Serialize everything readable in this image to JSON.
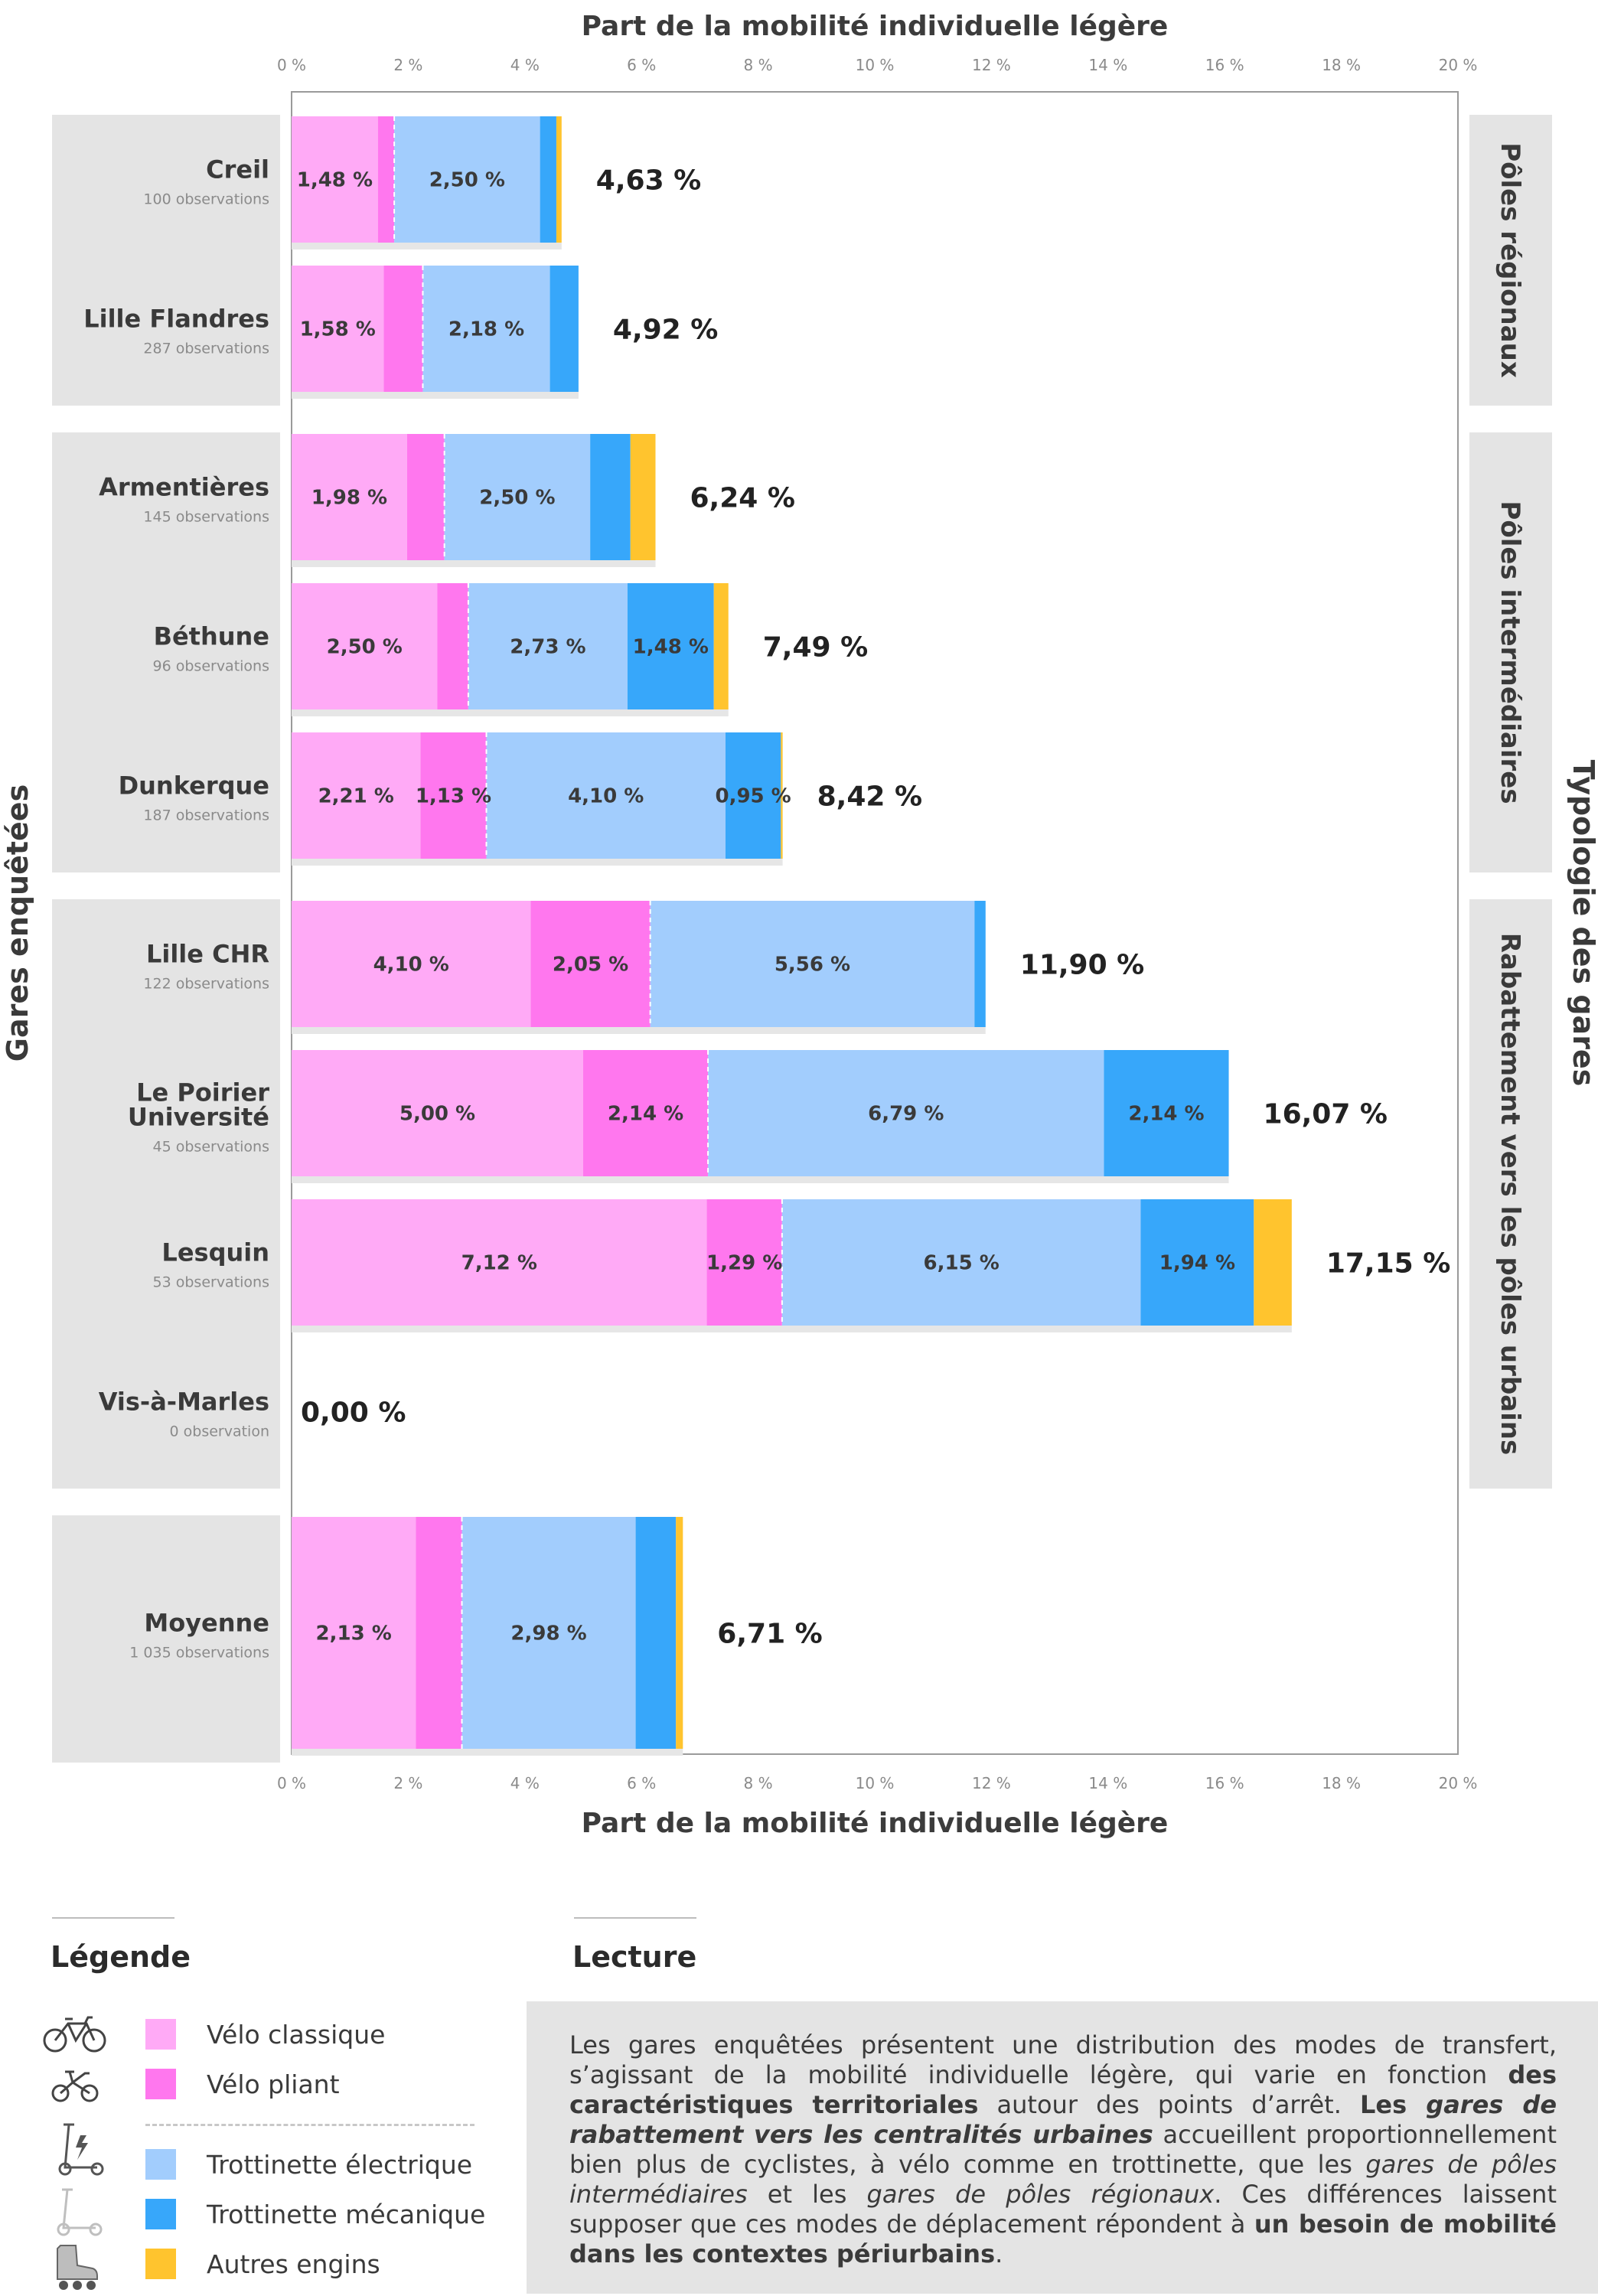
{
  "chart_data": {
    "type": "bar",
    "orientation": "horizontal",
    "stacked": true,
    "title": "Part de la mobilité individuelle légère",
    "xlabel": "Part de la mobilité individuelle légère",
    "ylabel": "Gares enquêtées",
    "right_label": "Typologie des gares",
    "xlim": [
      0,
      20
    ],
    "x_ticks": [
      "0 %",
      "2 %",
      "4 %",
      "6 %",
      "8 %",
      "10 %",
      "12 %",
      "14 %",
      "16 %",
      "18 %",
      "20 %"
    ],
    "series": [
      {
        "name": "Vélo classique",
        "color": "#ffaaf6"
      },
      {
        "name": "Vélo pliant",
        "color": "#ff77ee"
      },
      {
        "name": "Trottinette électrique",
        "color": "#a2cdfd"
      },
      {
        "name": "Trottinette mécanique",
        "color": "#37a7fa"
      },
      {
        "name": "Autres engins",
        "color": "#ffc42e"
      }
    ],
    "groups": [
      {
        "name": "Pôles régionaux",
        "stations": [
          0,
          1
        ]
      },
      {
        "name": "Pôles intermédiaires",
        "stations": [
          2,
          3,
          4
        ]
      },
      {
        "name": "Rabattement vers les pôles urbains",
        "stations": [
          5,
          6,
          7,
          8
        ]
      },
      {
        "name": "",
        "stations": [
          9
        ]
      }
    ],
    "stations": [
      {
        "name": "Creil",
        "obs": "100 observations",
        "values": [
          1.48,
          0.28,
          2.5,
          0.28,
          0.09
        ],
        "labels": [
          "1,48 %",
          "",
          "2,50 %",
          "",
          ""
        ],
        "total": "4,63 %"
      },
      {
        "name": "Lille Flandres",
        "obs": "287 observations",
        "values": [
          1.58,
          0.67,
          2.18,
          0.49,
          0.0
        ],
        "labels": [
          "1,58 %",
          "",
          "2,18 %",
          "",
          ""
        ],
        "total": "4,92 %"
      },
      {
        "name": "Armentières",
        "obs": "145 observations",
        "values": [
          1.98,
          0.64,
          2.5,
          0.69,
          0.43
        ],
        "labels": [
          "1,98 %",
          "",
          "2,50 %",
          "",
          ""
        ],
        "total": "6,24 %"
      },
      {
        "name": "Béthune",
        "obs": "96 observations",
        "values": [
          2.5,
          0.53,
          2.73,
          1.48,
          0.25
        ],
        "labels": [
          "2,50 %",
          "",
          "2,73 %",
          "1,48 %",
          ""
        ],
        "total": "7,49 %"
      },
      {
        "name": "Dunkerque",
        "obs": "187 observations",
        "values": [
          2.21,
          1.13,
          4.1,
          0.95,
          0.03
        ],
        "labels": [
          "2,21 %",
          "1,13 %",
          "4,10 %",
          "0,95 %",
          ""
        ],
        "total": "8,42 %"
      },
      {
        "name": "Lille CHR",
        "obs": "122 observations",
        "values": [
          4.1,
          2.05,
          5.56,
          0.19,
          0.0
        ],
        "labels": [
          "4,10 %",
          "2,05 %",
          "5,56 %",
          "",
          ""
        ],
        "total": "11,90 %"
      },
      {
        "name": [
          "Le Poirier",
          "Université"
        ],
        "obs": "45 observations",
        "values": [
          5.0,
          2.14,
          6.79,
          2.14,
          0.0
        ],
        "labels": [
          "5,00 %",
          "2,14 %",
          "6,79 %",
          "2,14 %",
          ""
        ],
        "total": "16,07 %"
      },
      {
        "name": "Lesquin",
        "obs": "53 observations",
        "values": [
          7.12,
          1.29,
          6.15,
          1.94,
          0.65
        ],
        "labels": [
          "7,12 %",
          "1,29 %",
          "6,15 %",
          "1,94 %",
          ""
        ],
        "total": "17,15 %"
      },
      {
        "name": "Vis-à-Marles",
        "obs": "0 observation",
        "values": [
          0,
          0,
          0,
          0,
          0
        ],
        "labels": [
          "",
          "",
          "",
          "",
          ""
        ],
        "total": "0,00 %"
      },
      {
        "name": "Moyenne",
        "obs": "1 035 observations",
        "values": [
          2.13,
          0.79,
          2.98,
          0.69,
          0.12
        ],
        "labels": [
          "2,13 %",
          "",
          "2,98 %",
          "",
          ""
        ],
        "total": "6,71 %"
      }
    ]
  },
  "legend": {
    "title": "Légende",
    "items": [
      {
        "label": "Vélo classique",
        "color": "#ffaaf6",
        "icon": "bicycle-icon"
      },
      {
        "label": "Vélo pliant",
        "color": "#ff77ee",
        "icon": "folding-bike-icon"
      },
      {
        "label": "Trottinette électrique",
        "color": "#a2cdfd",
        "icon": "electric-scooter-icon"
      },
      {
        "label": "Trottinette mécanique",
        "color": "#37a7fa",
        "icon": "kick-scooter-icon"
      },
      {
        "label": "Autres engins",
        "color": "#ffc42e",
        "icon": "roller-skate-icon"
      }
    ]
  },
  "lecture": {
    "title": "Lecture",
    "text_parts": [
      {
        "t": "Les gares enquêtées présentent une distribution des modes de transfert, s’agissant de la mobilité individuelle légère, qui varie en fonction ",
        "s": ""
      },
      {
        "t": "des caractéristiques territoriales",
        "s": "b"
      },
      {
        "t": " autour des points d’arrêt. ",
        "s": ""
      },
      {
        "t": "Les ",
        "s": "b"
      },
      {
        "t": "gares de rabattement vers les centralités urbaines",
        "s": "bi"
      },
      {
        "t": " accueillent proportionnellement bien plus de cyclistes, à vélo comme en trottinette, que les ",
        "s": ""
      },
      {
        "t": "gares de pôles intermédiaires",
        "s": "i"
      },
      {
        "t": " et les ",
        "s": ""
      },
      {
        "t": "gares de pôles régionaux",
        "s": "i"
      },
      {
        "t": ". Ces différences laissent supposer que ces modes de déplacement répondent à ",
        "s": ""
      },
      {
        "t": "un besoin de mobilité dans les contextes périurbains",
        "s": "b"
      },
      {
        "t": ".",
        "s": ""
      }
    ]
  }
}
